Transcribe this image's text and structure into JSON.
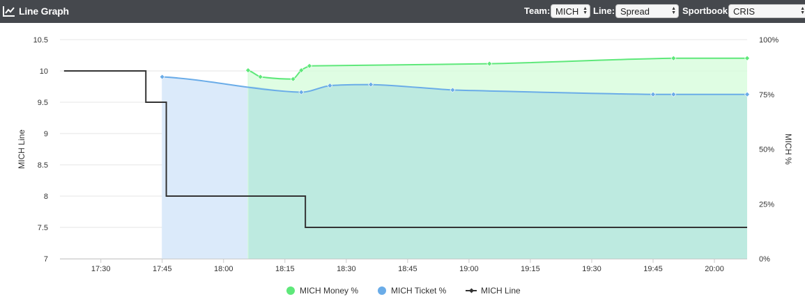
{
  "header": {
    "title": "Line Graph",
    "icon": "line-chart-icon",
    "team_label": "Team:",
    "team_value": "MICH",
    "line_label": "Line:",
    "line_value": "Spread",
    "sportbook_label": "Sportbook:",
    "sportbook_value": "CRIS"
  },
  "chart_data": {
    "type": "line",
    "xlabel": "",
    "ylabel": "MICH Line",
    "y2label": "MICH %",
    "xlim": [
      "17:20",
      "20:08"
    ],
    "ylim": [
      7,
      10.5
    ],
    "y2lim": [
      0,
      100
    ],
    "x_ticks": [
      "17:30",
      "17:45",
      "18:00",
      "18:15",
      "18:30",
      "18:45",
      "19:00",
      "19:15",
      "19:30",
      "19:45",
      "20:00"
    ],
    "y_ticks": [
      "7",
      "7.5",
      "8",
      "8.5",
      "9",
      "9.5",
      "10",
      "10.5"
    ],
    "y2_ticks": [
      "0%",
      "25%",
      "50%",
      "75%",
      "100%"
    ],
    "grid": true,
    "legend_position": "bottom-center",
    "series": [
      {
        "name": "MICH Money %",
        "axis": "right",
        "type": "area",
        "color": "#5ee87a",
        "fill": "#d4fcd9",
        "x": [
          "18:06",
          "18:09",
          "18:17",
          "18:19",
          "18:21",
          "19:05",
          "19:50",
          "20:08"
        ],
        "y": [
          86,
          83,
          82,
          86,
          88,
          89,
          91.5,
          91.5
        ]
      },
      {
        "name": "MICH Ticket %",
        "axis": "right",
        "type": "area",
        "color": "#6aace8",
        "fill": "#dbeafa",
        "x": [
          "17:45",
          "18:19",
          "18:26",
          "18:36",
          "18:56",
          "19:45",
          "19:50",
          "20:08"
        ],
        "y": [
          83,
          76,
          79,
          79.5,
          77,
          75,
          75,
          75
        ]
      },
      {
        "name": "MICH Line",
        "axis": "left",
        "type": "step",
        "color": "#333333",
        "x": [
          "17:21",
          "17:41",
          "17:46",
          "18:20",
          "20:08"
        ],
        "y": [
          10,
          9.5,
          8,
          7.5,
          7.5
        ]
      }
    ]
  }
}
